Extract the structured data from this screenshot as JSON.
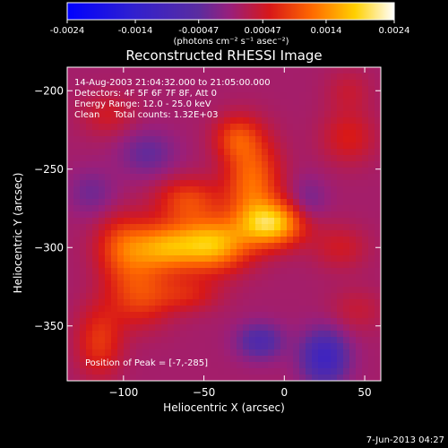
{
  "colorbar": {
    "ticks": [
      "-0.0024",
      "-0.0014",
      "-0.00047",
      "0.00047",
      "0.0014",
      "0.0024"
    ],
    "tick_values": [
      -0.0024,
      -0.0014,
      -0.00047,
      0.00047,
      0.0014,
      0.0024
    ],
    "range": [
      -0.0024,
      0.0024
    ],
    "unit_label": "(photons cm⁻² s⁻¹ asec⁻²)"
  },
  "chart_data": {
    "type": "heatmap",
    "title": "Reconstructed RHESSI Image",
    "xlabel": "Heliocentric X (arcsec)",
    "ylabel": "Heliocentric Y (arcsec)",
    "xlim": [
      -135,
      60
    ],
    "ylim": [
      -385,
      -185
    ],
    "xticks": [
      -100,
      -50,
      0,
      50
    ],
    "yticks": [
      -200,
      -250,
      -300,
      -350
    ],
    "xtick_labels": [
      "−100",
      "−50",
      "0",
      "50"
    ],
    "ytick_labels": [
      "−200",
      "−250",
      "−300",
      "−350"
    ],
    "colorscale": "blue-purple-red-yellow-white",
    "annotations": {
      "time": "14-Aug-2003 21:04:32.000 to 21:05:00.000",
      "detectors": "Detectors: 4F 5F 6F 7F 8F, Att 0",
      "energy": "Energy Range: 12.0 - 25.0 keV",
      "clean": "Clean     Total counts: 1.32E+03",
      "peak": "Position of Peak = [-7,-285]"
    },
    "peak": [
      -7,
      -285
    ],
    "sources": [
      {
        "x": -7,
        "y": -285,
        "sx": 14,
        "sy": 10,
        "amp": 0.0016
      },
      {
        "x": -45,
        "y": -298,
        "sx": 16,
        "sy": 12,
        "amp": 0.0016
      },
      {
        "x": -75,
        "y": -300,
        "sx": 14,
        "sy": 11,
        "amp": 0.0012
      },
      {
        "x": -100,
        "y": -300,
        "sx": 12,
        "sy": 14,
        "amp": 0.0009
      },
      {
        "x": -20,
        "y": -258,
        "sx": 12,
        "sy": 20,
        "amp": 0.0011
      },
      {
        "x": -30,
        "y": -230,
        "sx": 10,
        "sy": 10,
        "amp": 0.0007
      },
      {
        "x": -60,
        "y": -270,
        "sx": 14,
        "sy": 10,
        "amp": 0.0008
      },
      {
        "x": -90,
        "y": -330,
        "sx": 14,
        "sy": 14,
        "amp": 0.0008
      },
      {
        "x": -115,
        "y": -360,
        "sx": 10,
        "sy": 16,
        "amp": 0.0007
      },
      {
        "x": -60,
        "y": -330,
        "sx": 14,
        "sy": 8,
        "amp": 0.0005
      },
      {
        "x": 40,
        "y": -230,
        "sx": 12,
        "sy": 12,
        "amp": 0.0005
      },
      {
        "x": 35,
        "y": -300,
        "sx": 12,
        "sy": 10,
        "amp": 0.0004
      },
      {
        "x": -110,
        "y": -215,
        "sx": 12,
        "sy": 10,
        "amp": 0.0004
      },
      {
        "x": 45,
        "y": -340,
        "sx": 12,
        "sy": 10,
        "amp": 0.0003
      },
      {
        "x": 40,
        "y": -200,
        "sx": 10,
        "sy": 10,
        "amp": 0.0003
      },
      {
        "x": -15,
        "y": -360,
        "sx": 10,
        "sy": 8,
        "amp": -0.0008
      },
      {
        "x": 25,
        "y": -370,
        "sx": 10,
        "sy": 12,
        "amp": -0.0012
      },
      {
        "x": -85,
        "y": -240,
        "sx": 12,
        "sy": 10,
        "amp": -0.0005
      },
      {
        "x": 15,
        "y": -270,
        "sx": 8,
        "sy": 10,
        "amp": -0.0004
      },
      {
        "x": -120,
        "y": -265,
        "sx": 10,
        "sy": 10,
        "amp": -0.0004
      }
    ]
  },
  "footer": {
    "date": "7-Jun-2013 04:27"
  }
}
